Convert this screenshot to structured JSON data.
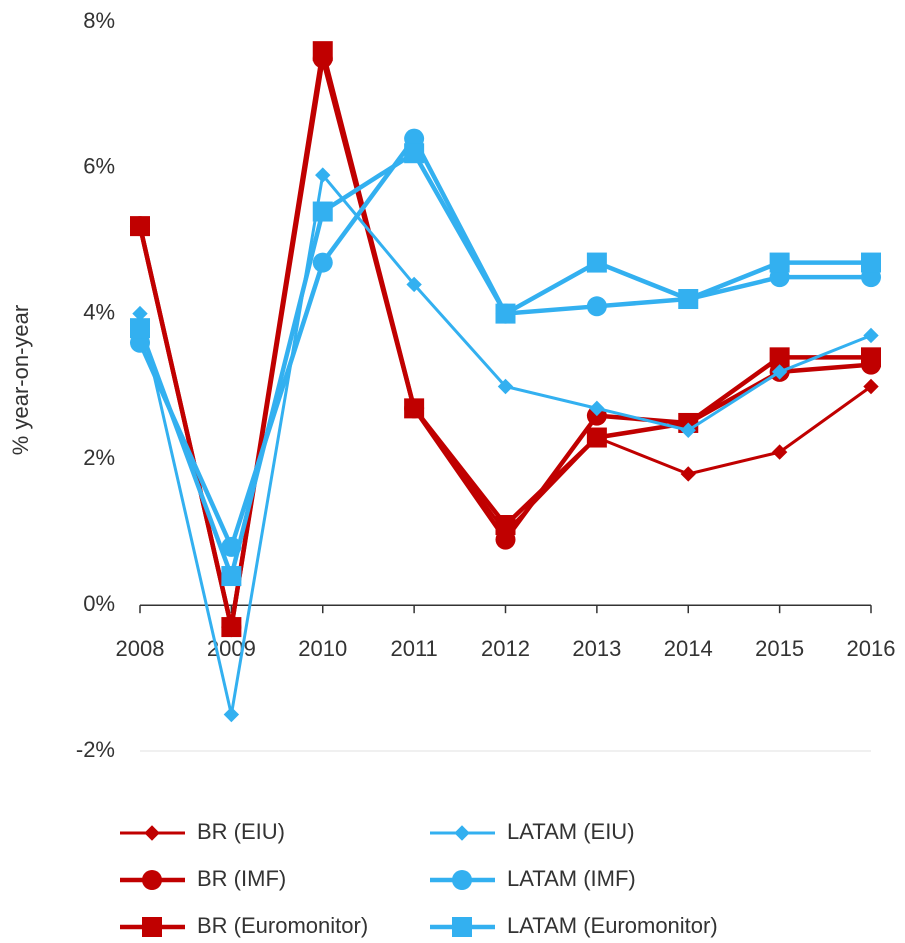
{
  "chart_data": {
    "type": "line",
    "y_label": "% year-on-year",
    "categories": [
      "2008",
      "2009",
      "2010",
      "2011",
      "2012",
      "2013",
      "2014",
      "2015",
      "2016"
    ],
    "series": [
      {
        "name": "BR (EIU)",
        "color": "#c00000",
        "marker": "diamond",
        "width": 3,
        "values": [
          5.2,
          -0.3,
          7.6,
          2.7,
          1.0,
          2.3,
          1.8,
          2.1,
          3.0
        ]
      },
      {
        "name": "BR (IMF)",
        "color": "#c00000",
        "marker": "circle",
        "width": 4.5,
        "values": [
          5.2,
          -0.3,
          7.5,
          2.7,
          0.9,
          2.6,
          2.5,
          3.2,
          3.3
        ]
      },
      {
        "name": "BR (Euromonitor)",
        "color": "#c00000",
        "marker": "square",
        "width": 4.5,
        "values": [
          5.2,
          -0.3,
          7.6,
          2.7,
          1.1,
          2.3,
          2.5,
          3.4,
          3.4
        ]
      },
      {
        "name": "LATAM (EIU)",
        "color": "#33b0f0",
        "marker": "diamond",
        "width": 3,
        "values": [
          4.0,
          -1.5,
          5.9,
          4.4,
          3.0,
          2.7,
          2.4,
          3.2,
          3.7
        ]
      },
      {
        "name": "LATAM (IMF)",
        "color": "#33b0f0",
        "marker": "circle",
        "width": 4.5,
        "values": [
          3.6,
          0.8,
          4.7,
          6.4,
          4.0,
          4.1,
          4.2,
          4.5,
          4.5
        ]
      },
      {
        "name": "LATAM (Euromonitor)",
        "color": "#33b0f0",
        "marker": "square",
        "width": 4.5,
        "values": [
          3.8,
          0.4,
          5.4,
          6.2,
          4.0,
          4.7,
          4.2,
          4.7,
          4.7
        ]
      }
    ],
    "ylim": [
      -2,
      8
    ],
    "yticks": [
      {
        "value": -2,
        "label": "-2%"
      },
      {
        "value": 0,
        "label": "0%"
      },
      {
        "value": 2,
        "label": "2%"
      },
      {
        "value": 4,
        "label": "4%"
      },
      {
        "value": 6,
        "label": "6%"
      },
      {
        "value": 8,
        "label": "8%"
      }
    ],
    "legend": "bottom"
  }
}
